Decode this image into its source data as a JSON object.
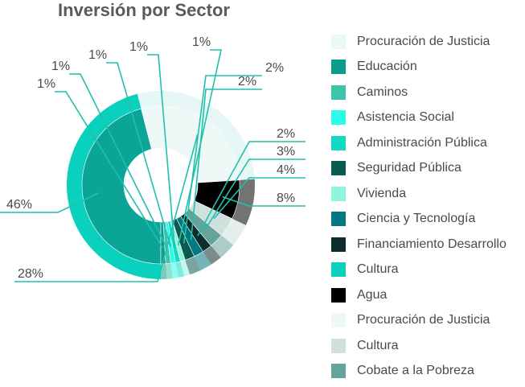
{
  "chart_data": {
    "type": "pie",
    "title": "Inversión por Sector",
    "slices": [
      {
        "label": "Cultura",
        "value": 46,
        "value_label": "46%",
        "color": "#0aa597"
      },
      {
        "label": "Procuración de Justicia",
        "value": 28,
        "value_label": "28%",
        "color": "#eef8f7"
      },
      {
        "label": "Agua",
        "value": 8,
        "value_label": "8%",
        "color": "#000000"
      },
      {
        "label": "Cultura",
        "value": 4,
        "value_label": "4%",
        "color": "#cfe0dd"
      },
      {
        "label": "Cobate a la Pobreza",
        "value": 3,
        "value_label": "3%",
        "color": "#66a39b"
      },
      {
        "label": "Financiamiento Desarrollo",
        "value": 2,
        "value_label": "2%",
        "color": "#0d2e2a"
      },
      {
        "label": "Ciencia y Tecnología",
        "value": 2,
        "value_label": "2%",
        "color": "#007a80"
      },
      {
        "label": "Seguridad Pública",
        "value": 2,
        "value_label": "2%",
        "color": "#0b5a52"
      },
      {
        "label": "Vivienda",
        "value": 1,
        "value_label": "1%",
        "color": "#8ff5dd"
      },
      {
        "label": "Administración Pública",
        "value": 1,
        "value_label": "1%",
        "color": "#11d9c4"
      },
      {
        "label": "Asistencia Social",
        "value": 1,
        "value_label": "1%",
        "color": "#2bfde8"
      },
      {
        "label": "Caminos",
        "value": 1,
        "value_label": "1%",
        "color": "#3dc4ab"
      },
      {
        "label": "Educación",
        "value": 1,
        "value_label": "1%",
        "color": "#0a9e8a"
      }
    ],
    "legend": [
      {
        "label": "Procuración de Justicia",
        "color": "#eaf8f6"
      },
      {
        "label": "Educación",
        "color": "#0a9e8a"
      },
      {
        "label": "Caminos",
        "color": "#3dc4ab"
      },
      {
        "label": "Asistencia Social",
        "color": "#2bfde8"
      },
      {
        "label": "Administración Pública",
        "color": "#11d9c4"
      },
      {
        "label": "Seguridad Pública",
        "color": "#0b5a52"
      },
      {
        "label": "Vivienda",
        "color": "#8ff5dd"
      },
      {
        "label": "Ciencia y Tecnología",
        "color": "#007a80"
      },
      {
        "label": "Financiamiento Desarrollo",
        "color": "#0d2e2a"
      },
      {
        "label": "Cultura",
        "color": "#0ad1bd"
      },
      {
        "label": "Agua",
        "color": "#000000"
      },
      {
        "label": "Procuración de Justicia",
        "color": "#eef8f7"
      },
      {
        "label": "Cultura",
        "color": "#cfe0dd"
      },
      {
        "label": "Cobate a la Pobreza",
        "color": "#66a39b"
      }
    ],
    "legend_position": "right",
    "outer_ring_color": "#0ad1bd",
    "outer_ring_soft_color": "#e6f7f5",
    "leader_line_color": "#1fc0ad"
  }
}
